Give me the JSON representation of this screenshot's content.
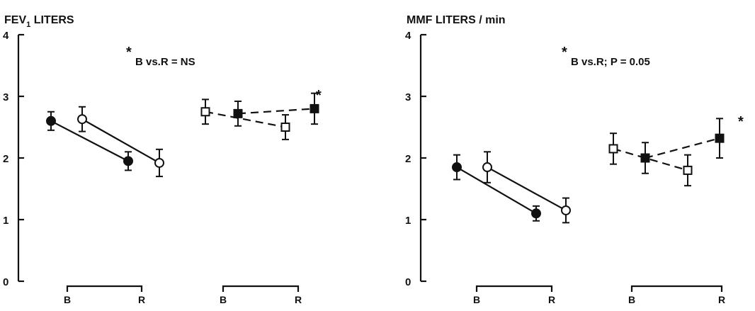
{
  "chart_data": [
    {
      "type": "line",
      "title": "FEV",
      "title_subscript": "1",
      "title_rest": " LITERS",
      "ylim": [
        0,
        4
      ],
      "yticks": [
        "0",
        "1",
        "2",
        "3",
        "4"
      ],
      "annotation_star": "*",
      "annotation_text": "B vs.R = NS",
      "marker_star": "*",
      "groups": [
        {
          "bracket_labels": [
            "B",
            "R"
          ]
        },
        {
          "bracket_labels": [
            "B",
            "R"
          ]
        }
      ],
      "series": [
        {
          "marker": "filled-circle",
          "style": "solid",
          "x": [
            "B",
            "R"
          ],
          "values": [
            2.6,
            1.95
          ],
          "err": [
            [
              0.15,
              0.15
            ],
            [
              0.15,
              0.15
            ]
          ]
        },
        {
          "marker": "open-circle",
          "style": "solid",
          "x": [
            "B",
            "R"
          ],
          "values": [
            2.63,
            1.92
          ],
          "err": [
            [
              0.2,
              0.2
            ],
            [
              0.22,
              0.22
            ]
          ]
        },
        {
          "marker": "open-square",
          "style": "dashed",
          "x": [
            "B",
            "R"
          ],
          "values": [
            2.75,
            2.5
          ],
          "err": [
            [
              0.2,
              0.2
            ],
            [
              0.2,
              0.2
            ]
          ]
        },
        {
          "marker": "filled-square",
          "style": "dashed",
          "x": [
            "B",
            "R"
          ],
          "values": [
            2.72,
            2.8
          ],
          "err": [
            [
              0.2,
              0.2
            ],
            [
              0.25,
              0.25
            ]
          ]
        }
      ]
    },
    {
      "type": "line",
      "title": "MMF LITERS / min",
      "ylim": [
        0,
        4
      ],
      "yticks": [
        "0",
        "1",
        "2",
        "3",
        "4"
      ],
      "annotation_star": "*",
      "annotation_text": "B vs.R; P = 0.05",
      "marker_star": "*",
      "groups": [
        {
          "bracket_labels": [
            "B",
            "R"
          ]
        },
        {
          "bracket_labels": [
            "B",
            "R"
          ]
        }
      ],
      "series": [
        {
          "marker": "filled-circle",
          "style": "solid",
          "x": [
            "B",
            "R"
          ],
          "values": [
            1.85,
            1.1
          ],
          "err": [
            [
              0.2,
              0.2
            ],
            [
              0.12,
              0.12
            ]
          ]
        },
        {
          "marker": "open-circle",
          "style": "solid",
          "x": [
            "B",
            "R"
          ],
          "values": [
            1.85,
            1.15
          ],
          "err": [
            [
              0.25,
              0.25
            ],
            [
              0.2,
              0.2
            ]
          ]
        },
        {
          "marker": "open-square",
          "style": "dashed",
          "x": [
            "B",
            "R"
          ],
          "values": [
            2.15,
            1.8
          ],
          "err": [
            [
              0.25,
              0.25
            ],
            [
              0.25,
              0.25
            ]
          ]
        },
        {
          "marker": "filled-square",
          "style": "dashed",
          "x": [
            "B",
            "R"
          ],
          "values": [
            2.0,
            2.32
          ],
          "err": [
            [
              0.25,
              0.25
            ],
            [
              0.32,
              0.32
            ]
          ]
        }
      ]
    }
  ]
}
